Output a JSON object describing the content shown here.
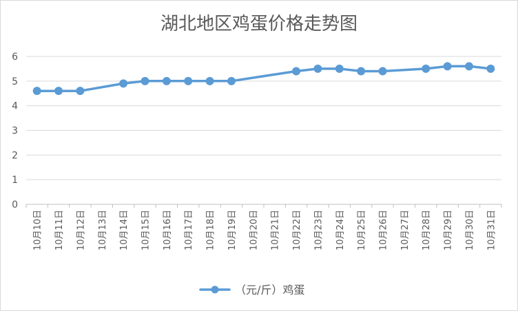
{
  "chart_data": {
    "type": "line",
    "title": "湖北地区鸡蛋价格走势图",
    "xlabel": "",
    "ylabel": "",
    "ylim": [
      0,
      6
    ],
    "yticks": [
      0,
      1,
      2,
      3,
      4,
      5,
      6
    ],
    "grid": true,
    "legend_position": "bottom",
    "categories": [
      "10月10日",
      "10月11日",
      "10月12日",
      "10月13日",
      "10月14日",
      "10月15日",
      "10月16日",
      "10月17日",
      "10月18日",
      "10月19日",
      "10月20日",
      "10月21日",
      "10月22日",
      "10月23日",
      "10月24日",
      "10月25日",
      "10月26日",
      "10月27日",
      "10月28日",
      "10月29日",
      "10月30日",
      "10月31日"
    ],
    "series": [
      {
        "name": "（元/斤）鸡蛋",
        "color": "#5B9BD5",
        "values": [
          4.6,
          4.6,
          4.6,
          null,
          4.9,
          5.0,
          5.0,
          5.0,
          5.0,
          5.0,
          null,
          null,
          5.4,
          5.5,
          5.5,
          5.4,
          5.4,
          null,
          5.5,
          5.6,
          5.6,
          5.5
        ]
      }
    ]
  }
}
